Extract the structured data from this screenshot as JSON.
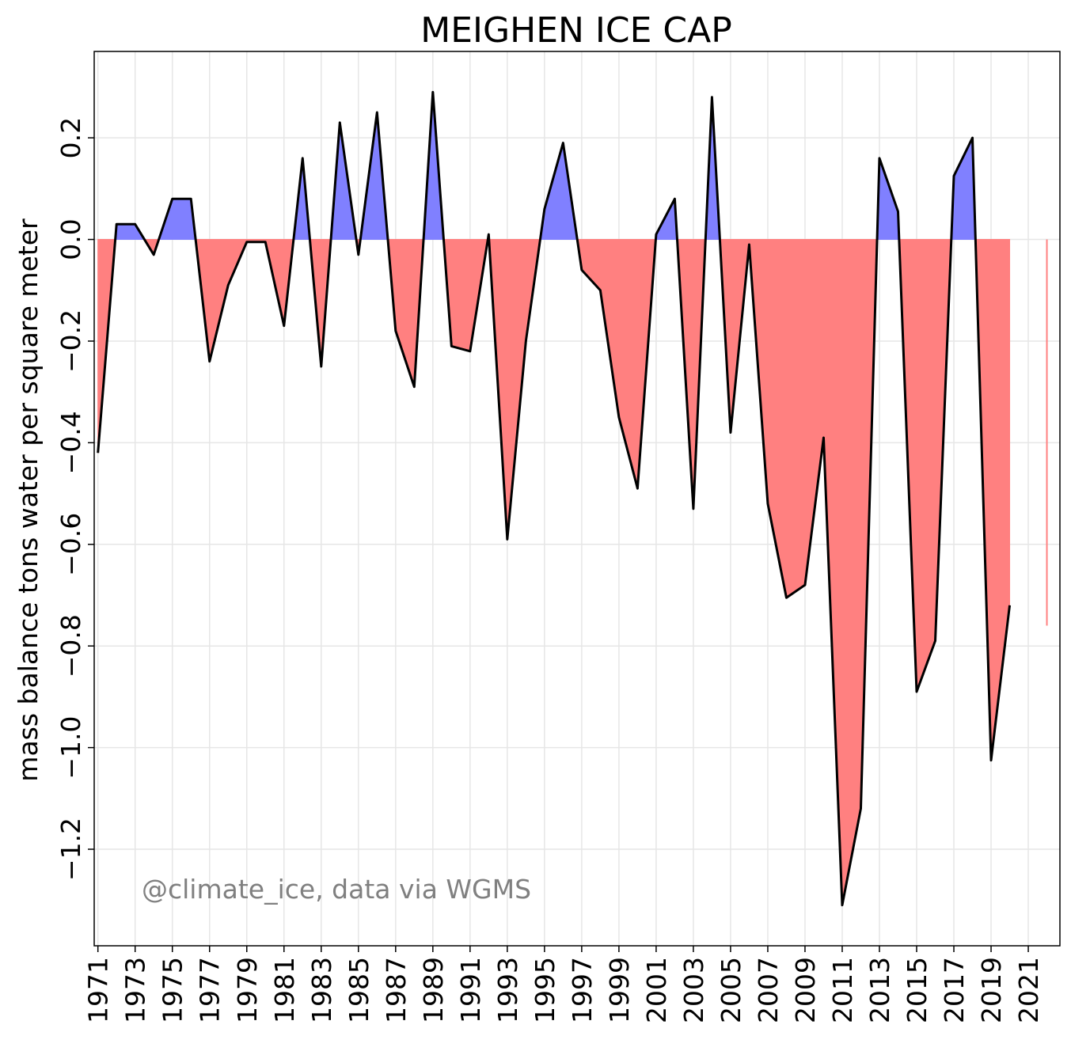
{
  "chart_data": {
    "type": "area",
    "title": "MEIGHEN ICE CAP",
    "xlabel": "",
    "ylabel": "mass balance tons water per square meter",
    "annotation": "@climate_ice, data via WGMS",
    "xlim": [
      1970.8,
      2022.7
    ],
    "ylim": [
      -1.39,
      0.37
    ],
    "x_ticks": [
      1971,
      1973,
      1975,
      1977,
      1979,
      1981,
      1983,
      1985,
      1987,
      1989,
      1991,
      1993,
      1995,
      1997,
      1999,
      2001,
      2003,
      2005,
      2007,
      2009,
      2011,
      2013,
      2015,
      2017,
      2019,
      2021
    ],
    "y_ticks": [
      0.2,
      0.0,
      -0.2,
      -0.4,
      -0.6,
      -0.8,
      -1.0,
      -1.2
    ],
    "y_tick_labels": [
      "0.2",
      "0.0",
      "−0.2",
      "−0.4",
      "−0.6",
      "−0.8",
      "−1.0",
      "−1.2"
    ],
    "grid": true,
    "positive_color": "#8080ff",
    "negative_color": "#ff8080",
    "line_color": "#000000",
    "series": [
      {
        "x": [
          1971,
          1972,
          1973,
          1974,
          1975,
          1976,
          1977,
          1978,
          1979,
          1980,
          1981,
          1982,
          1983,
          1984,
          1985,
          1986,
          1987,
          1988,
          1989,
          1990,
          1991,
          1992,
          1993,
          1994,
          1995,
          1996,
          1997,
          1998,
          1999,
          2000,
          2001,
          2002,
          2003,
          2004,
          2005,
          2006,
          2007,
          2008,
          2009,
          2010,
          2011,
          2012,
          2013,
          2014,
          2015,
          2016,
          2017,
          2018,
          2019,
          2020
        ],
        "values": [
          -0.42,
          0.03,
          0.03,
          -0.03,
          0.08,
          0.08,
          -0.24,
          -0.09,
          -0.005,
          -0.005,
          -0.17,
          0.16,
          -0.25,
          0.23,
          -0.03,
          0.25,
          -0.18,
          -0.29,
          0.29,
          -0.21,
          -0.22,
          0.01,
          -0.59,
          -0.2,
          0.06,
          0.19,
          -0.06,
          -0.1,
          -0.35,
          -0.49,
          0.01,
          0.08,
          -0.53,
          0.28,
          -0.38,
          -0.01,
          -0.52,
          -0.705,
          -0.68,
          -0.39,
          -1.31,
          -1.12,
          0.16,
          0.055,
          -0.89,
          -0.79,
          0.125,
          0.2,
          -1.025,
          -0.72
        ]
      }
    ],
    "extra_bars": [
      {
        "x": 2022,
        "value": -0.76
      }
    ]
  }
}
